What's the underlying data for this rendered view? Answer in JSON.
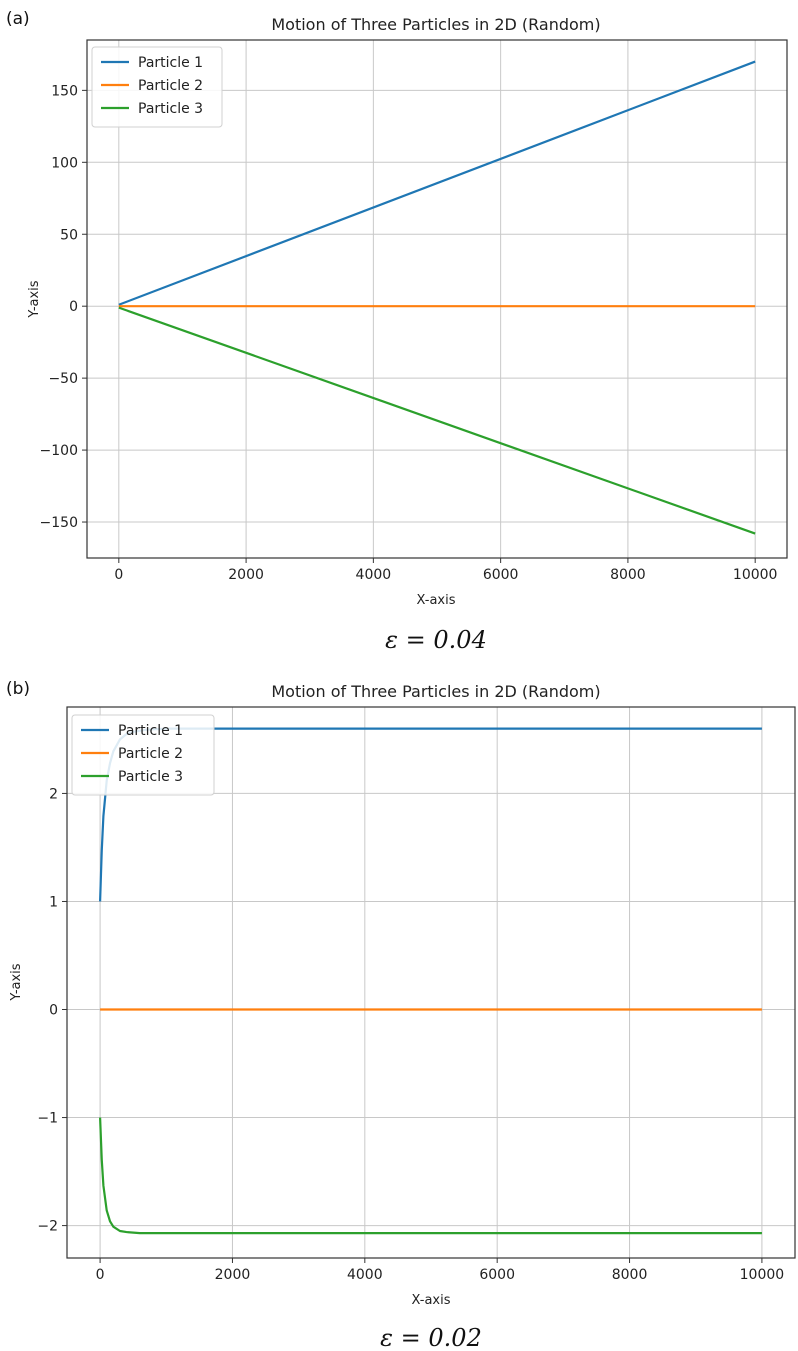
{
  "colors": {
    "particle1": "#1f77b4",
    "particle2": "#ff7f0e",
    "particle3": "#2ca02c",
    "grid": "#c8c8c8"
  },
  "chart_data": [
    {
      "panel_label": "(a)",
      "type": "line",
      "title": "Motion of Three Particles in 2D (Random)",
      "xlabel": "X-axis",
      "ylabel": "Y-axis",
      "xlim": [
        -500,
        10500
      ],
      "ylim": [
        -175,
        185
      ],
      "xticks": [
        0,
        2000,
        4000,
        6000,
        8000,
        10000
      ],
      "yticks": [
        150,
        100,
        50,
        0,
        -50,
        -100,
        -150
      ],
      "ytick_labels": [
        "150",
        "100",
        "50",
        "0",
        "−50",
        "−100",
        "−150"
      ],
      "grid": true,
      "legend_position": "upper-left",
      "caption": "ε = 0.04",
      "series": [
        {
          "name": "Particle 1",
          "color": "#1f77b4",
          "points": [
            [
              0,
              1
            ],
            [
              10000,
              170
            ]
          ]
        },
        {
          "name": "Particle 2",
          "color": "#ff7f0e",
          "points": [
            [
              0,
              0
            ],
            [
              10000,
              0
            ]
          ]
        },
        {
          "name": "Particle 3",
          "color": "#2ca02c",
          "points": [
            [
              0,
              -1
            ],
            [
              10000,
              -158
            ]
          ]
        }
      ]
    },
    {
      "panel_label": "(b)",
      "type": "line",
      "title": "Motion of Three Particles in 2D (Random)",
      "xlabel": "X-axis",
      "ylabel": "Y-axis",
      "xlim": [
        -500,
        10500
      ],
      "ylim": [
        -2.3,
        2.8
      ],
      "xticks": [
        0,
        2000,
        4000,
        6000,
        8000,
        10000
      ],
      "yticks": [
        2,
        1,
        0,
        -1,
        -2
      ],
      "ytick_labels": [
        "2",
        "1",
        "0",
        "−1",
        "−2"
      ],
      "grid": true,
      "legend_position": "upper-left",
      "caption": "ε = 0.02",
      "series": [
        {
          "name": "Particle 1",
          "color": "#1f77b4",
          "points": [
            [
              0,
              1.0
            ],
            [
              25,
              1.47
            ],
            [
              50,
              1.79
            ],
            [
              100,
              2.12
            ],
            [
              150,
              2.28
            ],
            [
              200,
              2.39
            ],
            [
              300,
              2.5
            ],
            [
              400,
              2.55
            ],
            [
              500,
              2.57
            ],
            [
              700,
              2.59
            ],
            [
              1000,
              2.6
            ],
            [
              2000,
              2.6
            ],
            [
              10000,
              2.6
            ]
          ]
        },
        {
          "name": "Particle 2",
          "color": "#ff7f0e",
          "points": [
            [
              0,
              0
            ],
            [
              10000,
              0
            ]
          ]
        },
        {
          "name": "Particle 3",
          "color": "#2ca02c",
          "points": [
            [
              0,
              -1.0
            ],
            [
              25,
              -1.39
            ],
            [
              50,
              -1.63
            ],
            [
              100,
              -1.86
            ],
            [
              150,
              -1.96
            ],
            [
              200,
              -2.01
            ],
            [
              300,
              -2.05
            ],
            [
              400,
              -2.06
            ],
            [
              600,
              -2.07
            ],
            [
              1000,
              -2.07
            ],
            [
              10000,
              -2.07
            ]
          ]
        }
      ]
    }
  ]
}
